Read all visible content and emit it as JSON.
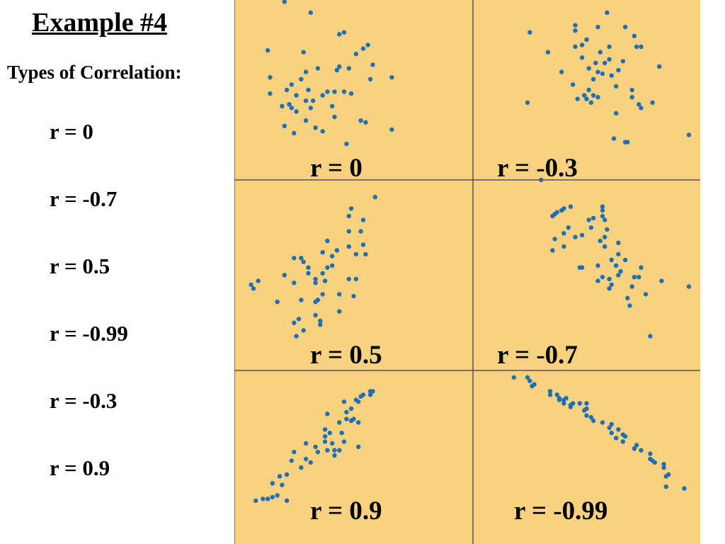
{
  "title": "Example #4",
  "subtitle": "Types of Correlation:",
  "r_list": [
    "r = 0",
    "r = -0.7",
    "r = 0.5",
    "r = -0.99",
    "r = -0.3",
    "r = 0.9"
  ],
  "colors": {
    "background": "#f9d27f",
    "point": "#1f6fb5",
    "grid_line": "#555555"
  },
  "chart_data": [
    {
      "type": "scatter",
      "title": "r = 0",
      "points": [
        [
          0.21,
          0.99
        ],
        [
          0.32,
          0.93
        ],
        [
          0.44,
          0.81
        ],
        [
          0.46,
          0.82
        ],
        [
          0.56,
          0.75
        ],
        [
          0.54,
          0.73
        ],
        [
          0.14,
          0.72
        ],
        [
          0.29,
          0.71
        ],
        [
          0.51,
          0.7
        ],
        [
          0.58,
          0.64
        ],
        [
          0.43,
          0.61
        ],
        [
          0.48,
          0.62
        ],
        [
          0.3,
          0.6
        ],
        [
          0.35,
          0.62
        ],
        [
          0.44,
          0.63
        ],
        [
          0.15,
          0.57
        ],
        [
          0.28,
          0.56
        ],
        [
          0.57,
          0.56
        ],
        [
          0.66,
          0.57
        ],
        [
          0.24,
          0.53
        ],
        [
          0.22,
          0.5
        ],
        [
          0.31,
          0.5
        ],
        [
          0.15,
          0.48
        ],
        [
          0.26,
          0.47
        ],
        [
          0.37,
          0.47
        ],
        [
          0.39,
          0.49
        ],
        [
          0.42,
          0.49
        ],
        [
          0.46,
          0.49
        ],
        [
          0.49,
          0.48
        ],
        [
          0.3,
          0.44
        ],
        [
          0.33,
          0.44
        ],
        [
          0.23,
          0.42
        ],
        [
          0.41,
          0.41
        ],
        [
          0.2,
          0.41
        ],
        [
          0.24,
          0.4
        ],
        [
          0.32,
          0.4
        ],
        [
          0.26,
          0.38
        ],
        [
          0.42,
          0.35
        ],
        [
          0.3,
          0.33
        ],
        [
          0.53,
          0.33
        ],
        [
          0.55,
          0.32
        ],
        [
          0.21,
          0.3
        ],
        [
          0.34,
          0.29
        ],
        [
          0.66,
          0.28
        ],
        [
          0.37,
          0.27
        ],
        [
          0.25,
          0.26
        ],
        [
          0.47,
          0.2
        ]
      ]
    },
    {
      "type": "scatter",
      "title": "r = -0.3",
      "points": [
        [
          0.59,
          0.93
        ],
        [
          0.45,
          0.86
        ],
        [
          0.45,
          0.83
        ],
        [
          0.55,
          0.85
        ],
        [
          0.67,
          0.85
        ],
        [
          0.25,
          0.82
        ],
        [
          0.71,
          0.8
        ],
        [
          0.5,
          0.78
        ],
        [
          0.6,
          0.74
        ],
        [
          0.45,
          0.74
        ],
        [
          0.48,
          0.75
        ],
        [
          0.72,
          0.74
        ],
        [
          0.74,
          0.74
        ],
        [
          0.33,
          0.71
        ],
        [
          0.56,
          0.71
        ],
        [
          0.48,
          0.68
        ],
        [
          0.6,
          0.67
        ],
        [
          0.66,
          0.66
        ],
        [
          0.54,
          0.65
        ],
        [
          0.58,
          0.65
        ],
        [
          0.82,
          0.63
        ],
        [
          0.51,
          0.62
        ],
        [
          0.55,
          0.6
        ],
        [
          0.39,
          0.6
        ],
        [
          0.57,
          0.59
        ],
        [
          0.64,
          0.61
        ],
        [
          0.61,
          0.58
        ],
        [
          0.53,
          0.56
        ],
        [
          0.44,
          0.53
        ],
        [
          0.63,
          0.52
        ],
        [
          0.7,
          0.5
        ],
        [
          0.51,
          0.5
        ],
        [
          0.53,
          0.47
        ],
        [
          0.55,
          0.46
        ],
        [
          0.5,
          0.45
        ],
        [
          0.49,
          0.47
        ],
        [
          0.7,
          0.46
        ],
        [
          0.46,
          0.45
        ],
        [
          0.24,
          0.43
        ],
        [
          0.52,
          0.43
        ],
        [
          0.73,
          0.42
        ],
        [
          0.79,
          0.43
        ],
        [
          0.74,
          0.4
        ],
        [
          0.63,
          0.37
        ],
        [
          0.62,
          0.23
        ],
        [
          0.67,
          0.21
        ],
        [
          0.68,
          0.21
        ],
        [
          0.95,
          0.25
        ]
      ]
    },
    {
      "type": "scatter",
      "title": "r = 0.5",
      "points": [
        [
          0.59,
          0.91
        ],
        [
          0.49,
          0.85
        ],
        [
          0.48,
          0.81
        ],
        [
          0.54,
          0.79
        ],
        [
          0.48,
          0.73
        ],
        [
          0.53,
          0.73
        ],
        [
          0.54,
          0.66
        ],
        [
          0.39,
          0.68
        ],
        [
          0.48,
          0.65
        ],
        [
          0.55,
          0.61
        ],
        [
          0.43,
          0.63
        ],
        [
          0.37,
          0.62
        ],
        [
          0.41,
          0.6
        ],
        [
          0.25,
          0.59
        ],
        [
          0.28,
          0.59
        ],
        [
          0.29,
          0.57
        ],
        [
          0.51,
          0.61
        ],
        [
          0.41,
          0.55
        ],
        [
          0.31,
          0.54
        ],
        [
          0.39,
          0.54
        ],
        [
          0.37,
          0.51
        ],
        [
          0.21,
          0.5
        ],
        [
          0.31,
          0.51
        ],
        [
          0.34,
          0.48
        ],
        [
          0.34,
          0.46
        ],
        [
          0.48,
          0.48
        ],
        [
          0.51,
          0.48
        ],
        [
          0.25,
          0.46
        ],
        [
          0.38,
          0.47
        ],
        [
          0.1,
          0.47
        ],
        [
          0.07,
          0.45
        ],
        [
          0.08,
          0.43
        ],
        [
          0.37,
          0.4
        ],
        [
          0.44,
          0.4
        ],
        [
          0.5,
          0.39
        ],
        [
          0.28,
          0.37
        ],
        [
          0.35,
          0.37
        ],
        [
          0.34,
          0.36
        ],
        [
          0.18,
          0.36
        ],
        [
          0.44,
          0.31
        ],
        [
          0.34,
          0.29
        ],
        [
          0.36,
          0.26
        ],
        [
          0.27,
          0.27
        ],
        [
          0.25,
          0.25
        ],
        [
          0.36,
          0.24
        ],
        [
          0.29,
          0.21
        ],
        [
          0.26,
          0.18
        ]
      ]
    },
    {
      "type": "scatter",
      "title": "r = -0.7",
      "points": [
        [
          0.3,
          1.0
        ],
        [
          0.43,
          0.86
        ],
        [
          0.4,
          0.85
        ],
        [
          0.39,
          0.84
        ],
        [
          0.37,
          0.83
        ],
        [
          0.36,
          0.82
        ],
        [
          0.35,
          0.81
        ],
        [
          0.57,
          0.86
        ],
        [
          0.57,
          0.84
        ],
        [
          0.57,
          0.81
        ],
        [
          0.53,
          0.8
        ],
        [
          0.58,
          0.79
        ],
        [
          0.51,
          0.79
        ],
        [
          0.42,
          0.75
        ],
        [
          0.52,
          0.75
        ],
        [
          0.59,
          0.74
        ],
        [
          0.4,
          0.72
        ],
        [
          0.45,
          0.7
        ],
        [
          0.48,
          0.71
        ],
        [
          0.58,
          0.7
        ],
        [
          0.36,
          0.69
        ],
        [
          0.4,
          0.65
        ],
        [
          0.56,
          0.68
        ],
        [
          0.58,
          0.65
        ],
        [
          0.64,
          0.67
        ],
        [
          0.35,
          0.63
        ],
        [
          0.64,
          0.61
        ],
        [
          0.67,
          0.58
        ],
        [
          0.61,
          0.58
        ],
        [
          0.63,
          0.55
        ],
        [
          0.55,
          0.55
        ],
        [
          0.48,
          0.54
        ],
        [
          0.47,
          0.54
        ],
        [
          0.74,
          0.54
        ],
        [
          0.65,
          0.52
        ],
        [
          0.64,
          0.5
        ],
        [
          0.57,
          0.49
        ],
        [
          0.6,
          0.48
        ],
        [
          0.61,
          0.45
        ],
        [
          0.71,
          0.49
        ],
        [
          0.73,
          0.49
        ],
        [
          0.83,
          0.47
        ],
        [
          0.55,
          0.47
        ],
        [
          0.6,
          0.43
        ],
        [
          0.7,
          0.44
        ],
        [
          0.95,
          0.44
        ],
        [
          0.76,
          0.4
        ],
        [
          0.68,
          0.38
        ],
        [
          0.69,
          0.34
        ],
        [
          0.78,
          0.18
        ]
      ]
    },
    {
      "type": "scatter",
      "title": "r = 0.9",
      "points": [
        [
          0.57,
          0.88
        ],
        [
          0.58,
          0.88
        ],
        [
          0.54,
          0.86
        ],
        [
          0.57,
          0.86
        ],
        [
          0.53,
          0.85
        ],
        [
          0.46,
          0.82
        ],
        [
          0.51,
          0.83
        ],
        [
          0.52,
          0.82
        ],
        [
          0.49,
          0.78
        ],
        [
          0.47,
          0.76
        ],
        [
          0.39,
          0.75
        ],
        [
          0.47,
          0.72
        ],
        [
          0.5,
          0.72
        ],
        [
          0.44,
          0.7
        ],
        [
          0.49,
          0.71
        ],
        [
          0.52,
          0.7
        ],
        [
          0.38,
          0.66
        ],
        [
          0.4,
          0.64
        ],
        [
          0.45,
          0.64
        ],
        [
          0.38,
          0.62
        ],
        [
          0.46,
          0.59
        ],
        [
          0.52,
          0.56
        ],
        [
          0.38,
          0.59
        ],
        [
          0.41,
          0.58
        ],
        [
          0.3,
          0.58
        ],
        [
          0.34,
          0.56
        ],
        [
          0.39,
          0.54
        ],
        [
          0.42,
          0.54
        ],
        [
          0.44,
          0.54
        ],
        [
          0.35,
          0.53
        ],
        [
          0.42,
          0.51
        ],
        [
          0.25,
          0.53
        ],
        [
          0.3,
          0.49
        ],
        [
          0.32,
          0.47
        ],
        [
          0.24,
          0.48
        ],
        [
          0.28,
          0.44
        ],
        [
          0.22,
          0.4
        ],
        [
          0.19,
          0.39
        ],
        [
          0.16,
          0.35
        ],
        [
          0.2,
          0.34
        ],
        [
          0.18,
          0.28
        ],
        [
          0.16,
          0.27
        ],
        [
          0.14,
          0.26
        ],
        [
          0.12,
          0.26
        ],
        [
          0.09,
          0.25
        ],
        [
          0.22,
          0.25
        ]
      ]
    },
    {
      "type": "scatter",
      "title": "r = -0.99",
      "points": [
        [
          0.18,
          0.96
        ],
        [
          0.24,
          0.96
        ],
        [
          0.25,
          0.94
        ],
        [
          0.27,
          0.92
        ],
        [
          0.26,
          0.91
        ],
        [
          0.34,
          0.88
        ],
        [
          0.34,
          0.86
        ],
        [
          0.37,
          0.86
        ],
        [
          0.38,
          0.84
        ],
        [
          0.41,
          0.84
        ],
        [
          0.38,
          0.83
        ],
        [
          0.4,
          0.83
        ],
        [
          0.4,
          0.81
        ],
        [
          0.43,
          0.8
        ],
        [
          0.44,
          0.81
        ],
        [
          0.47,
          0.81
        ],
        [
          0.5,
          0.81
        ],
        [
          0.5,
          0.78
        ],
        [
          0.43,
          0.79
        ],
        [
          0.49,
          0.77
        ],
        [
          0.5,
          0.74
        ],
        [
          0.52,
          0.73
        ],
        [
          0.53,
          0.71
        ],
        [
          0.57,
          0.7
        ],
        [
          0.6,
          0.67
        ],
        [
          0.61,
          0.69
        ],
        [
          0.61,
          0.64
        ],
        [
          0.64,
          0.66
        ],
        [
          0.66,
          0.63
        ],
        [
          0.63,
          0.61
        ],
        [
          0.67,
          0.62
        ],
        [
          0.66,
          0.59
        ],
        [
          0.72,
          0.57
        ],
        [
          0.71,
          0.55
        ],
        [
          0.74,
          0.54
        ],
        [
          0.78,
          0.52
        ],
        [
          0.78,
          0.49
        ],
        [
          0.79,
          0.48
        ],
        [
          0.8,
          0.47
        ],
        [
          0.84,
          0.46
        ],
        [
          0.84,
          0.44
        ],
        [
          0.86,
          0.4
        ],
        [
          0.85,
          0.39
        ],
        [
          0.85,
          0.33
        ],
        [
          0.93,
          0.32
        ]
      ]
    }
  ]
}
